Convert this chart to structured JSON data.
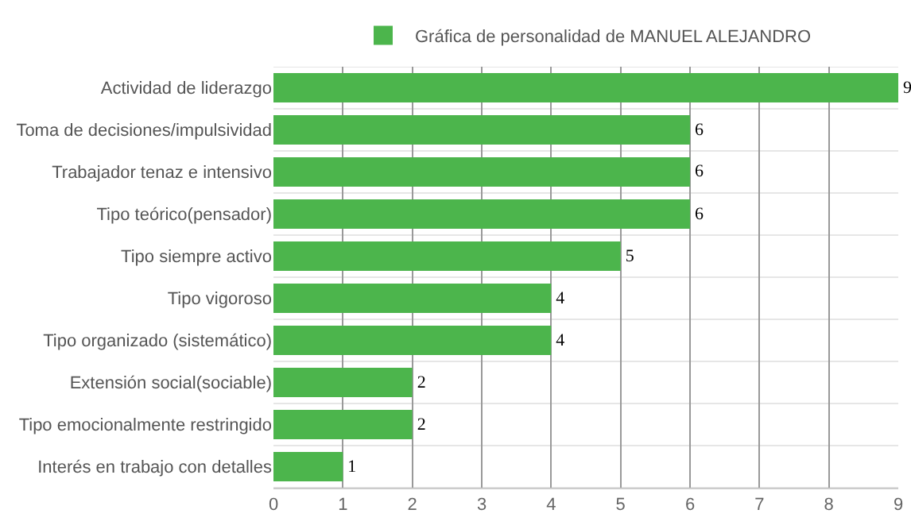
{
  "chart_data": {
    "type": "bar",
    "orientation": "horizontal",
    "categories": [
      "Actividad de liderazgo",
      "Toma de decisiones/impulsividad",
      "Trabajador tenaz e intensivo",
      "Tipo teórico(pensador)",
      "Tipo siempre activo",
      "Tipo vigoroso",
      "Tipo organizado (sistemático)",
      "Extensión social(sociable)",
      "Tipo emocionalmente restringido",
      "Interés en trabajo con detalles"
    ],
    "series": [
      {
        "name": "Gráfica de personalidad de MANUEL ALEJANDRO",
        "color": "#4cb54c",
        "values": [
          9,
          6,
          6,
          6,
          5,
          4,
          4,
          2,
          2,
          1
        ]
      }
    ],
    "xlim": [
      0,
      9
    ],
    "xticks": [
      0,
      1,
      2,
      3,
      4,
      5,
      6,
      7,
      8,
      9
    ],
    "grid": true,
    "legend": "top",
    "data_labels": true
  }
}
